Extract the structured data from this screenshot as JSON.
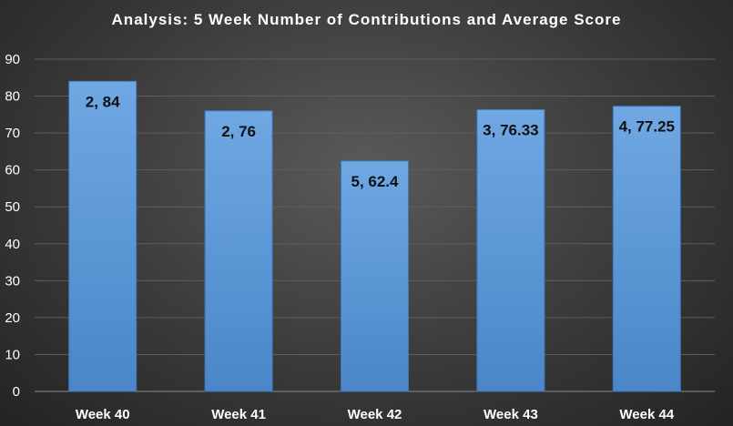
{
  "chart_data": {
    "type": "bar",
    "title": "Analysis:  5 Week Number of Contributions and Average Score",
    "categories": [
      "Week 40",
      "Week 41",
      "Week 42",
      "Week 43",
      "Week 44"
    ],
    "values": [
      84,
      76,
      62.4,
      76.33,
      77.25
    ],
    "data_labels": [
      "2, 84",
      "2, 76",
      "5, 62.4",
      "3, 76.33",
      "4, 77.25"
    ],
    "ylim": [
      0,
      90
    ],
    "yticks": [
      0,
      10,
      20,
      30,
      40,
      50,
      60,
      70,
      80,
      90
    ],
    "xlabel": "",
    "ylabel": "",
    "grid": true,
    "legend": "none",
    "colors": {
      "bar_top": "#6fa8e3",
      "bar_bottom": "#4a86c8",
      "background": "#3a3a3a"
    }
  }
}
